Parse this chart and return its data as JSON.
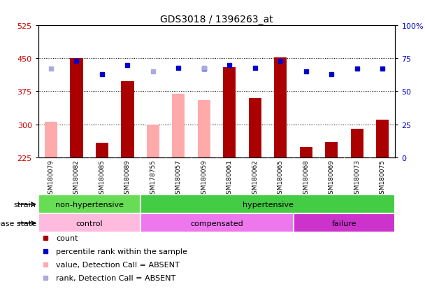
{
  "title": "GDS3018 / 1396263_at",
  "sample_labels": [
    "GSM180079",
    "GSM180082",
    "GSM180085",
    "GSM180089",
    "GSM178755",
    "GSM180057",
    "GSM180059",
    "GSM180061",
    "GSM180062",
    "GSM180065",
    "GSM180068",
    "GSM180069",
    "GSM180073",
    "GSM180075"
  ],
  "count_values": [
    null,
    450,
    258,
    398,
    null,
    null,
    null,
    430,
    360,
    452,
    248,
    260,
    290,
    310
  ],
  "absent_value_values": [
    305,
    null,
    null,
    null,
    300,
    370,
    355,
    null,
    null,
    null,
    null,
    null,
    null,
    null
  ],
  "percentile_rank": [
    null,
    73,
    63,
    70,
    null,
    68,
    67,
    70,
    68,
    73,
    65,
    63,
    67,
    67
  ],
  "absent_rank_values": [
    67,
    null,
    null,
    null,
    65,
    null,
    68,
    null,
    null,
    null,
    null,
    null,
    null,
    null
  ],
  "ylim_left": [
    225,
    525
  ],
  "ylim_right": [
    0,
    100
  ],
  "yticks_left": [
    225,
    300,
    375,
    450,
    525
  ],
  "yticks_right": [
    0,
    25,
    50,
    75,
    100
  ],
  "strain_groups": [
    {
      "label": "non-hypertensive",
      "start": 0,
      "end": 4,
      "color": "#66dd55"
    },
    {
      "label": "hypertensive",
      "start": 4,
      "end": 14,
      "color": "#44cc44"
    }
  ],
  "disease_groups": [
    {
      "label": "control",
      "start": 0,
      "end": 4,
      "color": "#ffbbdd"
    },
    {
      "label": "compensated",
      "start": 4,
      "end": 10,
      "color": "#ee77ee"
    },
    {
      "label": "failure",
      "start": 10,
      "end": 14,
      "color": "#cc33cc"
    }
  ],
  "bar_color_present": "#aa0000",
  "bar_color_absent_value": "#ffaaaa",
  "dot_color_present": "#0000cc",
  "dot_color_absent_rank": "#aaaadd",
  "bar_width": 0.5,
  "background_color": "#ffffff",
  "tick_label_color_left": "#cc0000",
  "tick_label_color_right": "#0000cc",
  "grid_yticks": [
    300,
    375,
    450
  ],
  "strain_label": "strain",
  "disease_label": "disease state",
  "legend_items": [
    {
      "color": "#aa0000",
      "label": "count",
      "type": "bar"
    },
    {
      "color": "#0000cc",
      "label": "percentile rank within the sample",
      "type": "dot"
    },
    {
      "color": "#ffaaaa",
      "label": "value, Detection Call = ABSENT",
      "type": "bar"
    },
    {
      "color": "#aaaadd",
      "label": "rank, Detection Call = ABSENT",
      "type": "dot"
    }
  ]
}
